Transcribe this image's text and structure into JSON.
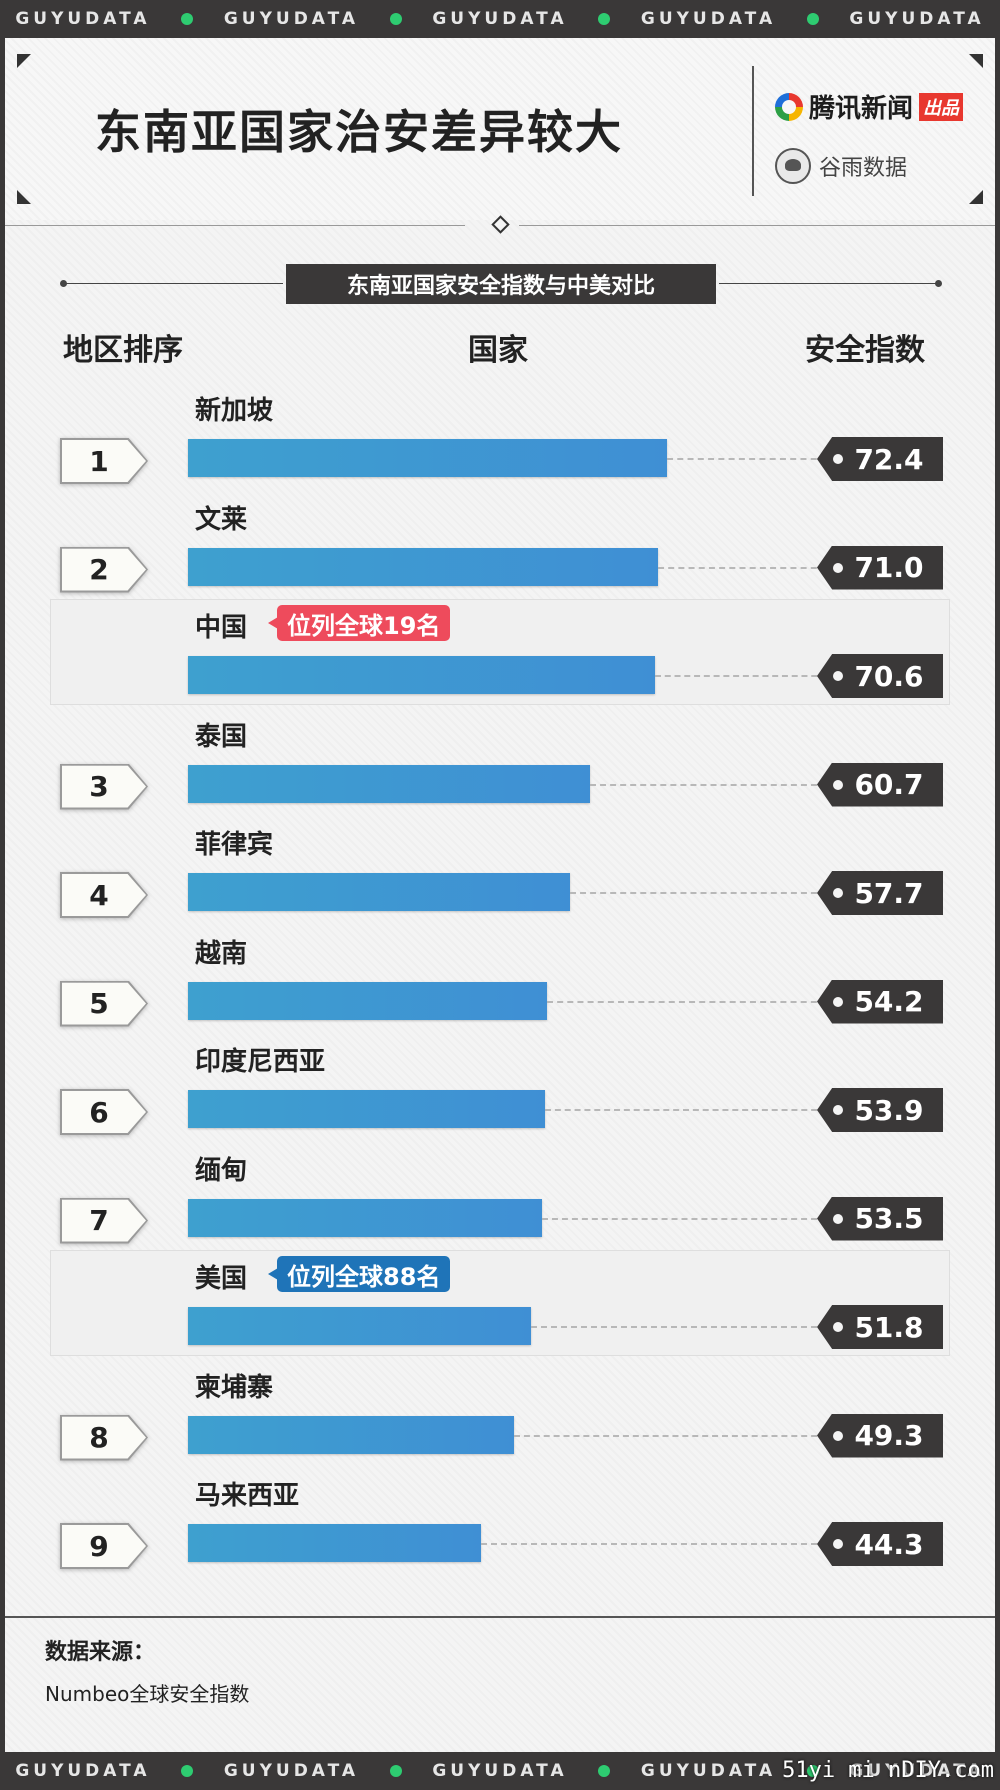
{
  "ticker": [
    "GUYUDATA",
    "GUYUDATA",
    "GUYUDATA",
    "GUYUDATA",
    "GUYUDATA"
  ],
  "header": {
    "title": "东南亚国家治安差异较大",
    "brand1": "腾讯新闻",
    "brand1_tag": "出品",
    "brand2": "谷雨数据"
  },
  "colors": {
    "bar": "#3f97d2",
    "dark": "#3a3838",
    "china_badge": "#ee4b5c",
    "usa_badge": "#1f74b8",
    "accent_dot": "#2ecc71"
  },
  "chart_data": {
    "type": "bar",
    "title": "东南亚国家安全指数与中美对比",
    "columns": [
      "地区排序",
      "国家",
      "安全指数"
    ],
    "rows": [
      {
        "rank": "1",
        "country": "新加坡",
        "value": 72.4
      },
      {
        "rank": "2",
        "country": "文莱",
        "value": 71.0
      },
      {
        "rank": "",
        "country": "中国",
        "value": 70.6,
        "badge": "位列全球19名"
      },
      {
        "rank": "3",
        "country": "泰国",
        "value": 60.7
      },
      {
        "rank": "4",
        "country": "菲律宾",
        "value": 57.7
      },
      {
        "rank": "5",
        "country": "越南",
        "value": 54.2
      },
      {
        "rank": "6",
        "country": "印度尼西亚",
        "value": 53.9
      },
      {
        "rank": "7",
        "country": "缅甸",
        "value": 53.5
      },
      {
        "rank": "",
        "country": "美国",
        "value": 51.8,
        "badge": "位列全球88名"
      },
      {
        "rank": "8",
        "country": "柬埔寨",
        "value": 49.3
      },
      {
        "rank": "9",
        "country": "马来西亚",
        "value": 44.3
      }
    ],
    "value_labels": [
      "72.4",
      "71.0",
      "70.6",
      "60.7",
      "57.7",
      "54.2",
      "53.9",
      "53.5",
      "51.8",
      "49.3",
      "44.3"
    ]
  },
  "source": {
    "label": "数据来源：",
    "text": "Numbeo全球安全指数"
  },
  "watermark": "51yi mi nDIY.com"
}
